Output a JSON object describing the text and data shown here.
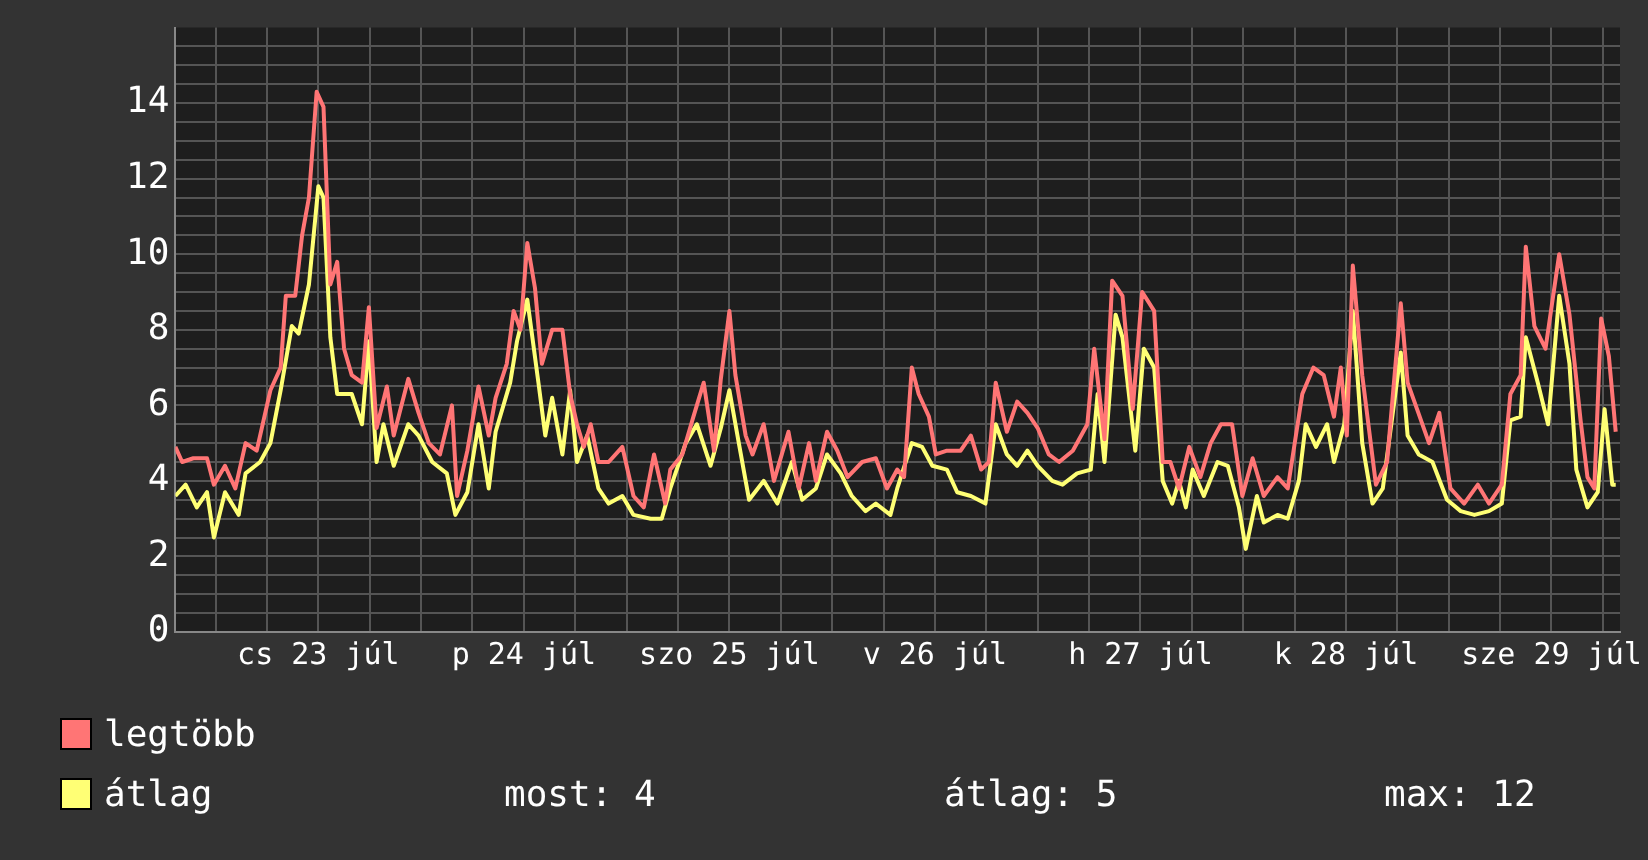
{
  "chart_data": {
    "type": "line",
    "legend": "bottom left",
    "grid": true,
    "marker": "none",
    "line_style": "solid",
    "xlim": [
      "--07-22T19:18",
      "--07-29T20:00"
    ],
    "ylim": [
      0,
      16
    ],
    "xticks": [
      {
        "value": "--07-23T00:00",
        "label": null
      },
      {
        "value": "--07-23T06:00",
        "label": null
      },
      {
        "value": "--07-23T12:00",
        "label": "cs 23 júl"
      },
      {
        "value": "--07-23T18:00",
        "label": null
      },
      {
        "value": "--07-24T00:00",
        "label": null
      },
      {
        "value": "--07-24T06:00",
        "label": null
      },
      {
        "value": "--07-24T12:00",
        "label": "p 24 júl"
      },
      {
        "value": "--07-24T18:00",
        "label": null
      },
      {
        "value": "--07-25T00:00",
        "label": null
      },
      {
        "value": "--07-25T06:00",
        "label": null
      },
      {
        "value": "--07-25T12:00",
        "label": "szo 25 júl"
      },
      {
        "value": "--07-25T18:00",
        "label": null
      },
      {
        "value": "--07-26T00:00",
        "label": null
      },
      {
        "value": "--07-26T06:00",
        "label": null
      },
      {
        "value": "--07-26T12:00",
        "label": "v 26 júl"
      },
      {
        "value": "--07-26T18:00",
        "label": null
      },
      {
        "value": "--07-27T00:00",
        "label": null
      },
      {
        "value": "--07-27T06:00",
        "label": null
      },
      {
        "value": "--07-27T12:00",
        "label": "h 27 júl"
      },
      {
        "value": "--07-27T18:00",
        "label": null
      },
      {
        "value": "--07-28T00:00",
        "label": null
      },
      {
        "value": "--07-28T06:00",
        "label": null
      },
      {
        "value": "--07-28T12:00",
        "label": "k 28 júl"
      },
      {
        "value": "--07-28T18:00",
        "label": null
      },
      {
        "value": "--07-29T00:00",
        "label": null
      },
      {
        "value": "--07-29T06:00",
        "label": null
      },
      {
        "value": "--07-29T12:00",
        "label": "sze 29 júl"
      },
      {
        "value": "--07-29T18:00",
        "label": null
      }
    ],
    "yticks": [
      0,
      {
        "value": 0.5,
        "label": null
      },
      {
        "value": 1,
        "label": null
      },
      {
        "value": 1.5,
        "label": null
      },
      2,
      {
        "value": 2.5,
        "label": null
      },
      {
        "value": 3,
        "label": null
      },
      {
        "value": 3.5,
        "label": null
      },
      4,
      {
        "value": 4.5,
        "label": null
      },
      {
        "value": 5,
        "label": null
      },
      {
        "value": 5.5,
        "label": null
      },
      6,
      {
        "value": 6.5,
        "label": null
      },
      {
        "value": 7,
        "label": null
      },
      {
        "value": 7.5,
        "label": null
      },
      8,
      {
        "value": 8.5,
        "label": null
      },
      {
        "value": 9,
        "label": null
      },
      {
        "value": 9.5,
        "label": null
      },
      10,
      {
        "value": 10.5,
        "label": null
      },
      {
        "value": 11,
        "label": null
      },
      {
        "value": 11.5,
        "label": null
      },
      12,
      {
        "value": 12.5,
        "label": null
      },
      {
        "value": 13,
        "label": null
      },
      {
        "value": 13.5,
        "label": null
      },
      14,
      {
        "value": 14.5,
        "label": null
      },
      {
        "value": 15,
        "label": null
      },
      {
        "value": 15.5,
        "label": null
      }
    ],
    "annotations": [
      "most: 4",
      "átlag: 5",
      "max: 12"
    ],
    "series": [
      {
        "name": "legtöbb",
        "color": "#ff7575",
        "x": [
          "--07-22T19:18",
          "--07-22T20:06",
          "--07-22T21:24",
          "--07-22T23:00",
          "--07-22T23:48",
          "--07-23T01:06",
          "--07-23T02:18",
          "--07-23T03:30",
          "--07-23T04:48",
          "--07-23T06:24",
          "--07-23T07:36",
          "--07-23T08:12",
          "--07-23T09:18",
          "--07-23T10:06",
          "--07-23T10:54",
          "--07-23T11:48",
          "--07-23T12:36",
          "--07-23T13:24",
          "--07-23T14:12",
          "--07-23T15:00",
          "--07-23T15:54",
          "--07-23T17:06",
          "--07-23T17:54",
          "--07-23T18:48",
          "--07-23T20:00",
          "--07-23T20:48",
          "--07-23T22:30",
          "--07-23T23:42",
          "--07-24T00:54",
          "--07-24T02:12",
          "--07-24T03:36",
          "--07-24T04:12",
          "--07-24T05:24",
          "--07-24T06:42",
          "--07-24T07:54",
          "--07-24T08:42",
          "--07-24T10:00",
          "--07-24T10:48",
          "--07-24T11:36",
          "--07-24T12:24",
          "--07-24T13:18",
          "--07-24T14:06",
          "--07-24T15:18",
          "--07-24T16:30",
          "--07-24T17:24",
          "--07-24T18:12",
          "--07-24T19:00",
          "--07-24T19:48",
          "--07-24T20:42",
          "--07-24T21:54",
          "--07-24T23:30",
          "--07-25T00:48",
          "--07-25T02:00",
          "--07-25T03:12",
          "--07-25T04:30",
          "--07-25T05:06",
          "--07-25T06:30",
          "--07-25T07:48",
          "--07-25T09:00",
          "--07-25T10:12",
          "--07-25T11:00",
          "--07-25T12:00",
          "--07-25T12:42",
          "--07-25T13:54",
          "--07-25T14:42",
          "--07-25T16:00",
          "--07-25T17:12",
          "--07-25T18:54",
          "--07-25T20:06",
          "--07-25T21:18",
          "--07-25T22:06",
          "--07-25T23:24",
          "--07-26T00:36",
          "--07-26T01:48",
          "--07-26T03:30",
          "--07-26T05:06",
          "--07-26T06:24",
          "--07-26T07:36",
          "--07-26T08:24",
          "--07-26T09:18",
          "--07-26T10:06",
          "--07-26T11:18",
          "--07-26T12:06",
          "--07-26T13:24",
          "--07-26T15:00",
          "--07-26T16:12",
          "--07-26T17:24",
          "--07-26T18:18",
          "--07-26T19:06",
          "--07-26T20:24",
          "--07-26T21:36",
          "--07-26T22:48",
          "--07-27T00:00",
          "--07-27T01:18",
          "--07-27T02:30",
          "--07-27T04:06",
          "--07-27T05:48",
          "--07-27T06:36",
          "--07-27T07:48",
          "--07-27T08:42",
          "--07-27T09:54",
          "--07-27T11:06",
          "--07-27T12:12",
          "--07-27T13:36",
          "--07-27T14:36",
          "--07-27T15:30",
          "--07-27T16:30",
          "--07-27T17:42",
          "--07-27T19:00",
          "--07-27T20:12",
          "--07-27T21:24",
          "--07-27T22:42",
          "--07-27T23:54",
          "--07-28T01:06",
          "--07-28T02:24",
          "--07-28T04:00",
          "--07-28T05:12",
          "--07-28T06:54",
          "--07-28T08:12",
          "--07-28T09:24",
          "--07-28T10:36",
          "--07-28T11:24",
          "--07-28T12:06",
          "--07-28T12:48",
          "--07-28T13:54",
          "--07-28T15:30",
          "--07-28T16:48",
          "--07-28T18:24",
          "--07-28T19:12",
          "--07-28T20:18",
          "--07-28T21:42",
          "--07-28T22:54",
          "--07-29T00:12",
          "--07-29T01:48",
          "--07-29T03:24",
          "--07-29T04:42",
          "--07-29T06:12",
          "--07-29T07:12",
          "--07-29T08:24",
          "--07-29T09:00",
          "--07-29T10:00",
          "--07-29T11:18",
          "--07-29T12:54",
          "--07-29T14:06",
          "--07-29T15:24",
          "--07-29T16:12",
          "--07-29T17:00",
          "--07-29T17:48",
          "--07-29T18:42",
          "--07-29T19:30"
        ],
        "values": [
          4.9,
          4.5,
          4.6,
          4.6,
          3.9,
          4.4,
          3.8,
          5.0,
          4.8,
          6.4,
          7.0,
          8.9,
          8.9,
          10.5,
          11.5,
          14.3,
          13.9,
          9.2,
          9.8,
          7.5,
          6.8,
          6.6,
          8.6,
          5.4,
          6.5,
          5.2,
          6.7,
          5.8,
          5.0,
          4.7,
          6.0,
          3.6,
          4.8,
          6.5,
          5.2,
          6.2,
          7.1,
          8.5,
          8.0,
          10.3,
          9.1,
          7.1,
          8.0,
          8.0,
          6.3,
          5.5,
          4.9,
          5.5,
          4.5,
          4.5,
          4.9,
          3.6,
          3.3,
          4.7,
          3.4,
          4.3,
          4.7,
          5.7,
          6.6,
          4.8,
          6.7,
          8.5,
          6.8,
          5.2,
          4.7,
          5.5,
          4.0,
          5.3,
          3.8,
          5.0,
          4.0,
          5.3,
          4.8,
          4.1,
          4.5,
          4.6,
          3.8,
          4.3,
          4.1,
          7.0,
          6.3,
          5.7,
          4.7,
          4.8,
          4.8,
          5.2,
          4.3,
          4.5,
          6.6,
          5.3,
          6.1,
          5.8,
          5.4,
          4.7,
          4.5,
          4.8,
          5.5,
          7.5,
          5.1,
          9.3,
          8.9,
          5.9,
          9.0,
          8.5,
          4.5,
          4.5,
          3.8,
          4.9,
          4.1,
          5.0,
          5.5,
          5.5,
          3.6,
          4.6,
          3.6,
          4.1,
          3.8,
          6.3,
          7.0,
          6.8,
          5.7,
          7.0,
          5.2,
          9.7,
          6.8,
          3.9,
          4.5,
          8.7,
          6.6,
          5.9,
          5.0,
          5.8,
          3.8,
          3.4,
          3.9,
          3.4,
          3.9,
          6.3,
          6.8,
          10.2,
          8.1,
          7.5,
          10.0,
          8.4,
          5.6,
          4.1,
          3.8,
          8.3,
          7.3,
          5.3
        ]
      },
      {
        "name": "átlag",
        "color": "#ffff75",
        "x": [
          "--07-22T19:18",
          "--07-22T20:30",
          "--07-22T21:48",
          "--07-22T23:00",
          "--07-22T23:48",
          "--07-23T01:06",
          "--07-23T02:42",
          "--07-23T03:30",
          "--07-23T05:12",
          "--07-23T06:24",
          "--07-23T07:36",
          "--07-23T08:54",
          "--07-23T09:42",
          "--07-23T10:54",
          "--07-23T12:00",
          "--07-23T12:36",
          "--07-23T13:24",
          "--07-23T14:12",
          "--07-23T15:54",
          "--07-23T17:06",
          "--07-23T17:54",
          "--07-23T18:48",
          "--07-23T19:36",
          "--07-23T20:48",
          "--07-23T22:30",
          "--07-23T23:42",
          "--07-24T01:18",
          "--07-24T03:00",
          "--07-24T04:00",
          "--07-24T05:24",
          "--07-24T06:42",
          "--07-24T07:54",
          "--07-24T08:42",
          "--07-24T10:24",
          "--07-24T11:12",
          "--07-24T12:24",
          "--07-24T13:42",
          "--07-24T14:30",
          "--07-24T15:18",
          "--07-24T16:30",
          "--07-24T17:24",
          "--07-24T18:12",
          "--07-24T19:24",
          "--07-24T20:42",
          "--07-24T21:54",
          "--07-24T23:30",
          "--07-25T00:48",
          "--07-25T02:48",
          "--07-25T04:06",
          "--07-25T05:06",
          "--07-25T06:54",
          "--07-25T08:12",
          "--07-25T09:48",
          "--07-25T11:00",
          "--07-25T12:00",
          "--07-25T13:06",
          "--07-25T14:18",
          "--07-25T16:00",
          "--07-25T17:36",
          "--07-25T19:18",
          "--07-25T20:30",
          "--07-25T22:06",
          "--07-25T23:24",
          "--07-26T01:00",
          "--07-26T02:18",
          "--07-26T03:54",
          "--07-26T05:06",
          "--07-26T06:48",
          "--07-26T07:36",
          "--07-26T09:18",
          "--07-26T10:30",
          "--07-26T11:42",
          "--07-26T13:24",
          "--07-26T14:36",
          "--07-26T16:12",
          "--07-26T17:54",
          "--07-26T19:06",
          "--07-26T20:24",
          "--07-26T21:36",
          "--07-26T22:48",
          "--07-27T00:00",
          "--07-27T01:42",
          "--07-27T02:54",
          "--07-27T04:36",
          "--07-27T06:12",
          "--07-27T07:00",
          "--07-27T07:48",
          "--07-27T09:06",
          "--07-27T09:54",
          "--07-27T11:24",
          "--07-27T12:24",
          "--07-27T13:36",
          "--07-27T14:36",
          "--07-27T15:42",
          "--07-27T16:30",
          "--07-27T17:18",
          "--07-27T18:06",
          "--07-27T19:24",
          "--07-27T21:00",
          "--07-27T22:12",
          "--07-27T23:30",
          "--07-28T00:18",
          "--07-28T01:36",
          "--07-28T02:24",
          "--07-28T04:00",
          "--07-28T05:12",
          "--07-28T06:30",
          "--07-28T07:18",
          "--07-28T08:30",
          "--07-28T09:48",
          "--07-28T10:36",
          "--07-28T11:48",
          "--07-28T12:48",
          "--07-28T13:54",
          "--07-28T15:06",
          "--07-28T16:18",
          "--07-28T18:24",
          "--07-28T19:12",
          "--07-28T20:30",
          "--07-28T22:06",
          "--07-28T23:48",
          "--07-29T01:24",
          "--07-29T03:00",
          "--07-29T04:42",
          "--07-29T06:12",
          "--07-29T07:12",
          "--07-29T08:24",
          "--07-29T09:00",
          "--07-29T10:24",
          "--07-29T11:36",
          "--07-29T12:54",
          "--07-29T14:06",
          "--07-29T14:54",
          "--07-29T16:12",
          "--07-29T17:24",
          "--07-29T18:12",
          "--07-29T19:06",
          "--07-29T19:30"
        ],
        "values": [
          3.6,
          3.9,
          3.3,
          3.7,
          2.5,
          3.7,
          3.1,
          4.2,
          4.5,
          5.0,
          6.4,
          8.1,
          7.9,
          9.2,
          11.8,
          11.5,
          7.8,
          6.3,
          6.3,
          5.5,
          7.7,
          4.5,
          5.5,
          4.4,
          5.5,
          5.2,
          4.5,
          4.2,
          3.1,
          3.7,
          5.5,
          3.8,
          5.3,
          6.6,
          7.7,
          8.8,
          6.6,
          5.2,
          6.2,
          4.7,
          6.4,
          4.5,
          5.2,
          3.8,
          3.4,
          3.6,
          3.1,
          3.0,
          3.0,
          3.8,
          5.0,
          5.5,
          4.4,
          5.4,
          6.4,
          5.0,
          3.5,
          4.0,
          3.4,
          4.5,
          3.5,
          3.8,
          4.7,
          4.2,
          3.6,
          3.2,
          3.4,
          3.1,
          3.8,
          5.0,
          4.9,
          4.4,
          4.3,
          3.7,
          3.6,
          3.4,
          5.5,
          4.7,
          4.4,
          4.8,
          4.4,
          4.0,
          3.9,
          4.2,
          4.3,
          6.3,
          4.5,
          8.4,
          7.8,
          4.8,
          7.5,
          7.0,
          4.0,
          3.4,
          4.0,
          3.3,
          4.3,
          3.6,
          4.5,
          4.4,
          3.3,
          2.2,
          3.6,
          2.9,
          3.1,
          3.0,
          4.0,
          5.5,
          4.9,
          5.5,
          4.5,
          5.5,
          8.5,
          5.0,
          3.4,
          3.8,
          7.4,
          5.2,
          4.7,
          4.5,
          3.5,
          3.2,
          3.1,
          3.2,
          3.4,
          5.6,
          5.7,
          7.8,
          6.6,
          5.5,
          8.9,
          7.1,
          4.3,
          3.3,
          3.7,
          5.9,
          3.9,
          3.9
        ]
      }
    ]
  }
}
